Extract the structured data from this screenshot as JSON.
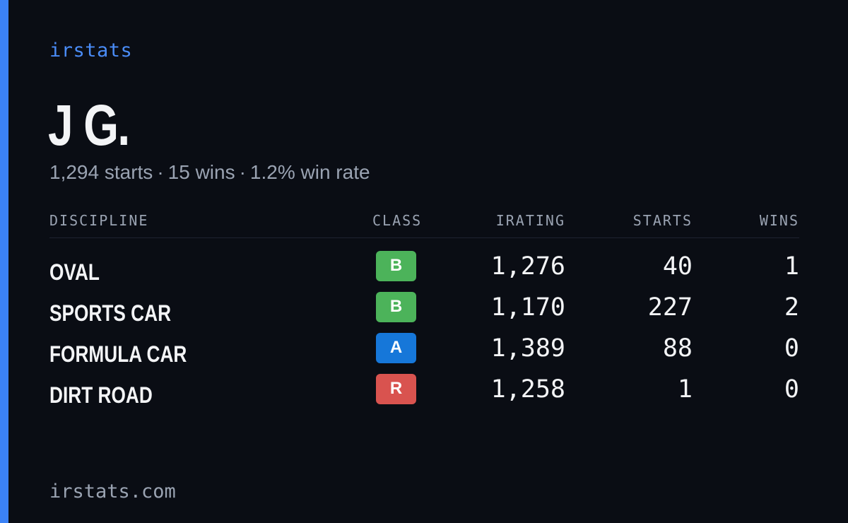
{
  "brand": "irstats",
  "driver": {
    "name": "J G.",
    "starts": "1,294 starts",
    "wins": "15 wins",
    "win_rate": "1.2% win rate",
    "separator": "·"
  },
  "table": {
    "headers": {
      "discipline": "DISCIPLINE",
      "class": "CLASS",
      "irating": "IRATING",
      "starts": "STARTS",
      "wins": "WINS"
    },
    "rows": [
      {
        "discipline": "OVAL",
        "class": "B",
        "class_color": "#4cb35a",
        "irating": "1,276",
        "starts": "40",
        "wins": "1"
      },
      {
        "discipline": "SPORTS CAR",
        "class": "B",
        "class_color": "#4cb35a",
        "irating": "1,170",
        "starts": "227",
        "wins": "2"
      },
      {
        "discipline": "FORMULA CAR",
        "class": "A",
        "class_color": "#1677d9",
        "irating": "1,389",
        "starts": "88",
        "wins": "0"
      },
      {
        "discipline": "DIRT ROAD",
        "class": "R",
        "class_color": "#d9534f",
        "irating": "1,258",
        "starts": "1",
        "wins": "0"
      }
    ]
  },
  "footer": {
    "url": "irstats.com"
  },
  "colors": {
    "background": "#0a0d14",
    "accent": "#3b82f6",
    "brand_text": "#4a8cf7",
    "muted_text": "#9aa3b2",
    "primary_text": "#f3f4f6"
  }
}
